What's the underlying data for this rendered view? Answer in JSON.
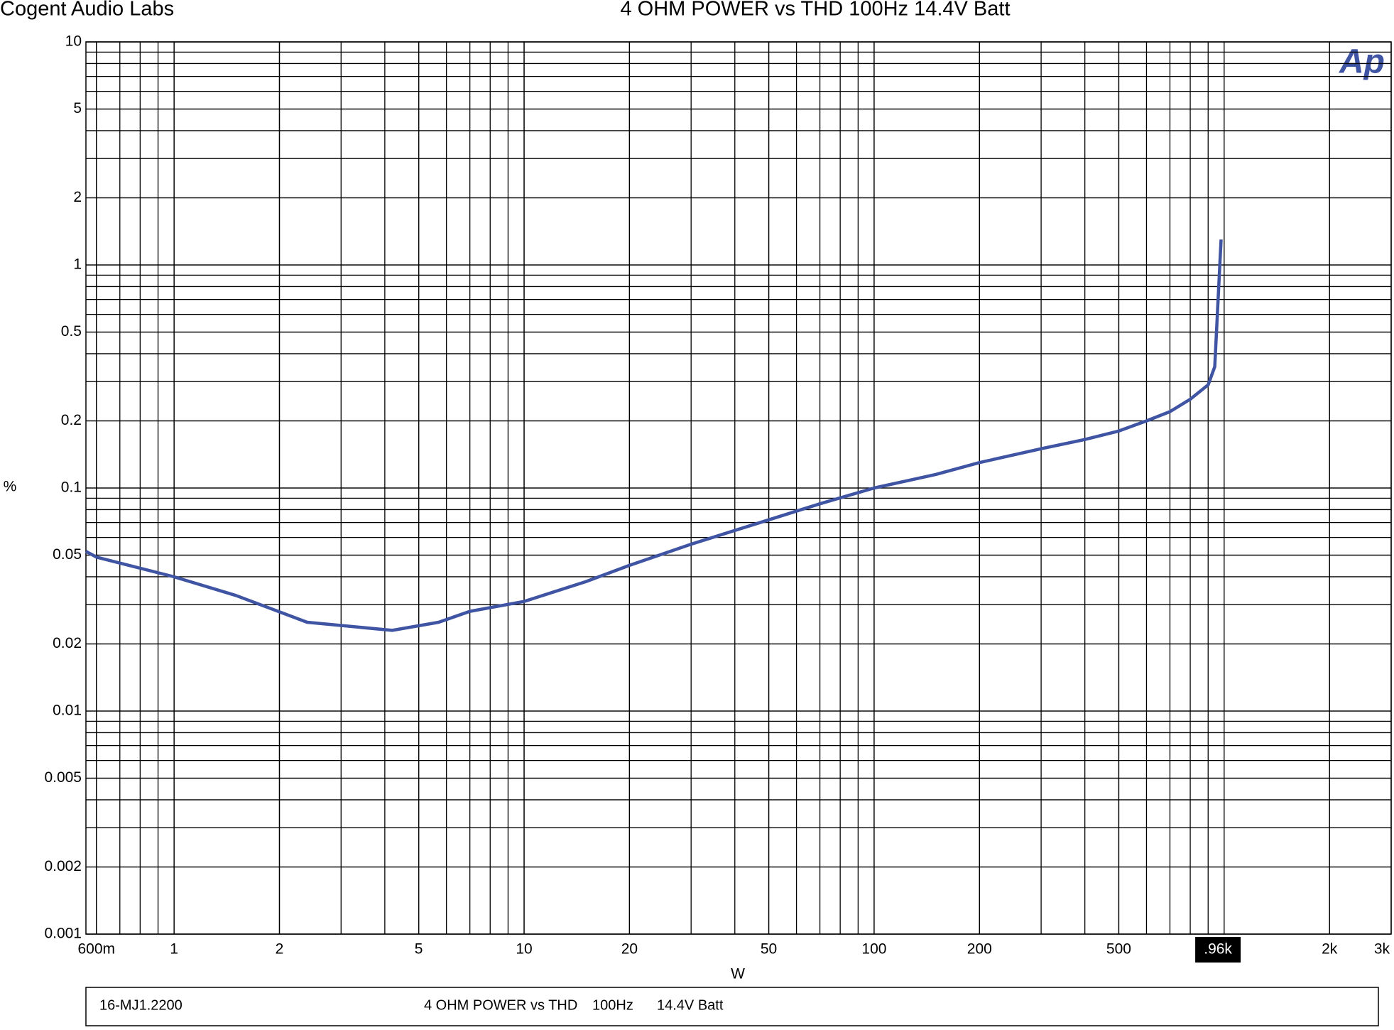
{
  "brand": "Cogent Audio Labs",
  "logo": "Ap",
  "footer": {
    "id": "16-MJ1.2200",
    "title": "4 OHM POWER vs THD",
    "frequency": "100Hz",
    "supply": "14.4V Batt"
  },
  "chart_data": {
    "type": "line",
    "title": "4 OHM POWER vs THD  100Hz  14.4V Batt",
    "x_label": "W",
    "y_label": "%",
    "xscale": "log",
    "yscale": "log",
    "grid": true,
    "xlim": [
      0.56,
      3000
    ],
    "ylim": [
      0.001,
      10
    ],
    "xticks": [
      {
        "value": 0.6,
        "label": "600m"
      },
      1,
      2,
      5,
      10,
      20,
      50,
      100,
      200,
      500,
      {
        "value": 2000,
        "label": "2k"
      },
      {
        "value": 3000,
        "label": "3k"
      }
    ],
    "yticks": [
      0.001,
      0.002,
      0.005,
      0.01,
      0.02,
      0.05,
      0.1,
      0.2,
      0.5,
      1,
      2,
      5,
      10
    ],
    "cursor": {
      "value": 960,
      "label": ".96k"
    },
    "series": [
      {
        "color": "#3f54a3",
        "x": [
          0.56,
          0.6,
          1,
          1.5,
          2.4,
          4.2,
          5.7,
          7,
          10,
          15,
          20,
          30,
          50,
          70,
          100,
          150,
          200,
          300,
          400,
          500,
          600,
          700,
          800,
          900,
          940,
          980
        ],
        "values": [
          0.052,
          0.049,
          0.04,
          0.033,
          0.025,
          0.023,
          0.025,
          0.028,
          0.031,
          0.038,
          0.045,
          0.056,
          0.072,
          0.085,
          0.1,
          0.115,
          0.13,
          0.15,
          0.165,
          0.18,
          0.2,
          0.22,
          0.25,
          0.29,
          0.35,
          1.3
        ]
      }
    ]
  }
}
